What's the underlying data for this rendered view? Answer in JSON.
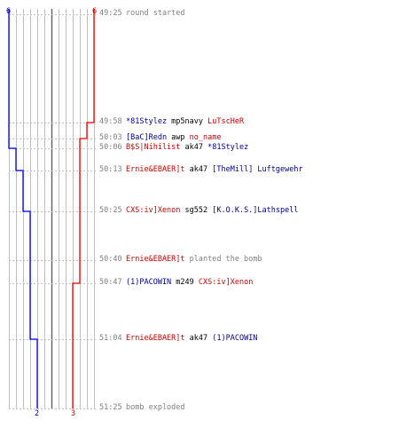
{
  "colors": {
    "red": "#c80000",
    "blue": "#00008b",
    "gray": "#808080",
    "grid": "#c0c0c0",
    "axis": "#606060"
  },
  "scores": {
    "blue_start": "6",
    "red_start": "6",
    "blue_end": "2",
    "red_end": "3"
  },
  "events": [
    {
      "time": "49:25",
      "parts": [
        {
          "text": "round started",
          "team": "gray"
        }
      ]
    },
    {
      "time": "49:58",
      "parts": [
        {
          "text": "*81Stylez",
          "team": "blue"
        },
        {
          "text": " mp5navy ",
          "team": "black"
        },
        {
          "text": "LuTscHeR",
          "team": "red"
        }
      ]
    },
    {
      "time": "50:03",
      "parts": [
        {
          "text": "[BaC]Redn",
          "team": "blue"
        },
        {
          "text": " awp ",
          "team": "black"
        },
        {
          "text": "no_name",
          "team": "red"
        }
      ]
    },
    {
      "time": "50:06",
      "parts": [
        {
          "text": "B$S|Nihilist",
          "team": "red"
        },
        {
          "text": " ak47 ",
          "team": "black"
        },
        {
          "text": "*81Stylez",
          "team": "blue"
        }
      ]
    },
    {
      "time": "50:13",
      "parts": [
        {
          "text": "Ernie&EBAER]t",
          "team": "red"
        },
        {
          "text": " ak47 ",
          "team": "black"
        },
        {
          "text": "[TheMill] Luftgewehr",
          "team": "blue"
        }
      ]
    },
    {
      "time": "50:25",
      "parts": [
        {
          "text": "CXS:iv]Xenon",
          "team": "red"
        },
        {
          "text": " sg552 ",
          "team": "black"
        },
        {
          "text": "[K.O.K.S.]Lathspell",
          "team": "blue"
        }
      ]
    },
    {
      "time": "50:40",
      "parts": [
        {
          "text": "Ernie&EBAER]t",
          "team": "red"
        },
        {
          "text": " planted the bomb",
          "team": "gray"
        }
      ]
    },
    {
      "time": "50:47",
      "parts": [
        {
          "text": "(1)PACOWIN",
          "team": "blue"
        },
        {
          "text": " m249 ",
          "team": "black"
        },
        {
          "text": "CXS:iv]Xenon",
          "team": "red"
        }
      ]
    },
    {
      "time": "51:04",
      "parts": [
        {
          "text": "Ernie&EBAER]t",
          "team": "red"
        },
        {
          "text": " ak47 ",
          "team": "black"
        },
        {
          "text": "(1)PACOWIN",
          "team": "blue"
        }
      ]
    },
    {
      "time": "51:25",
      "parts": [
        {
          "text": "bomb exploded",
          "team": "gray"
        }
      ]
    }
  ]
}
